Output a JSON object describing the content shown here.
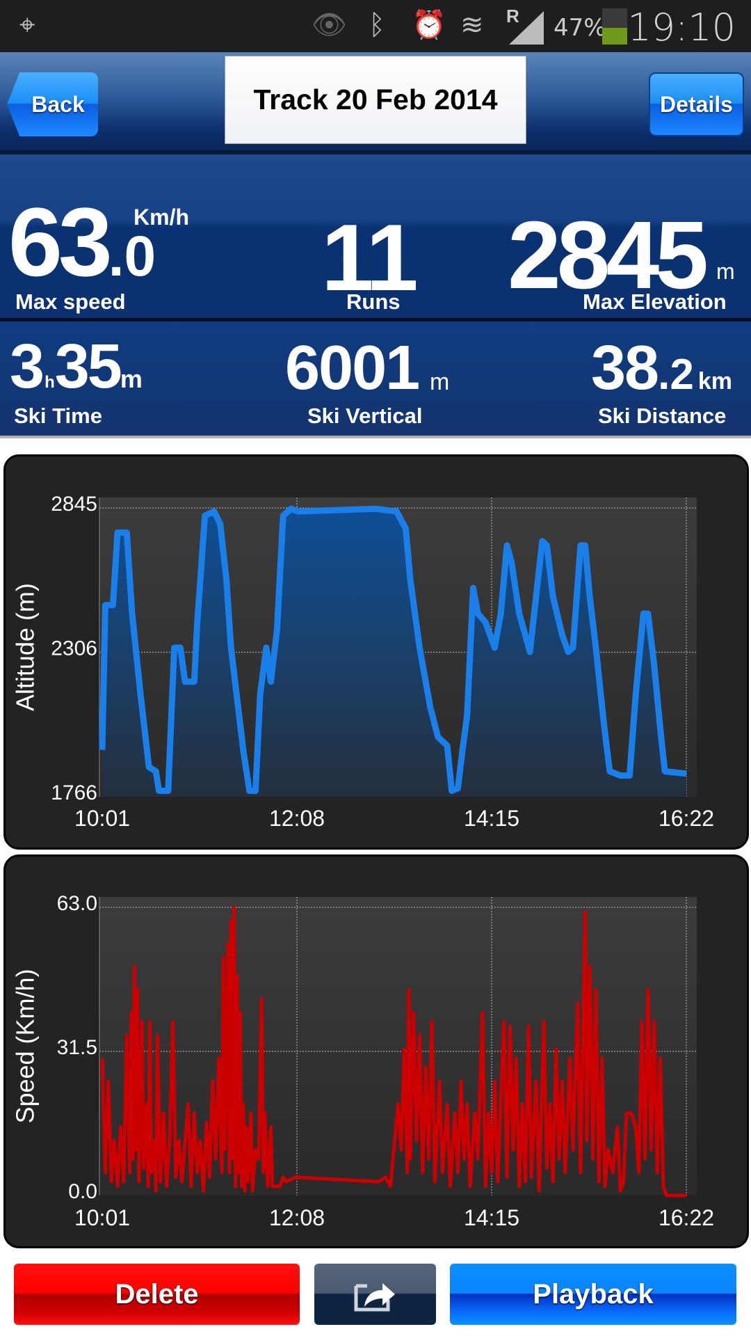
{
  "status_bar": {
    "battery_percent": "47%",
    "battery_level": 0.47,
    "time": "19:10",
    "roaming": "R",
    "icons": [
      "gps-icon",
      "eye-icon",
      "bluetooth-icon",
      "alarm-icon",
      "wifi-icon",
      "signal-icon",
      "battery-icon"
    ]
  },
  "header": {
    "back_label": "Back",
    "title": "Track 20 Feb 2014",
    "details_label": "Details"
  },
  "stats": {
    "max_speed": {
      "int": "63",
      "dec": ".0",
      "unit": "Km/h",
      "label": "Max speed"
    },
    "runs": {
      "value": "11",
      "label": "Runs"
    },
    "max_elevation": {
      "value": "2845",
      "unit": "m",
      "label": "Max Elevation"
    },
    "ski_time": {
      "hours": "3",
      "h_unit": "h",
      "minutes": "35",
      "m_unit": "m",
      "label": "Ski Time"
    },
    "ski_vertical": {
      "value": "6001",
      "unit": "m",
      "label": "Ski Vertical"
    },
    "ski_distance": {
      "int": "38",
      "dec": ".2",
      "unit": "km",
      "label": "Ski Distance"
    }
  },
  "colors": {
    "altitude": "#1a7fe8",
    "speed": "#cc0000",
    "delete": "#ff0000",
    "playback": "#0a84ff"
  },
  "chart_data": [
    {
      "type": "area",
      "ylabel": "Altitude (m)",
      "xlabel": "",
      "x_ticks": [
        "10:01",
        "12:08",
        "14:15",
        "16:22"
      ],
      "y_ticks": [
        "1766",
        "2306",
        "2845"
      ],
      "xlim": [
        "10:01",
        "16:22"
      ],
      "ylim": [
        1766,
        2845
      ],
      "grid": true,
      "x_unit_note_minutes_from": "10:01",
      "points": [
        [
          0,
          1941
        ],
        [
          2,
          2482
        ],
        [
          7,
          2482
        ],
        [
          10,
          2753
        ],
        [
          16,
          2753
        ],
        [
          19.5,
          2450
        ],
        [
          25,
          2148
        ],
        [
          30.5,
          1877
        ],
        [
          35,
          1861
        ],
        [
          37,
          1788
        ],
        [
          43,
          1788
        ],
        [
          47,
          2323
        ],
        [
          51,
          2323
        ],
        [
          54,
          2196
        ],
        [
          60,
          2196
        ],
        [
          62,
          2418
        ],
        [
          67,
          2816
        ],
        [
          73,
          2832
        ],
        [
          77,
          2784
        ],
        [
          81,
          2577
        ],
        [
          84,
          2323
        ],
        [
          92,
          1941
        ],
        [
          96,
          1788
        ],
        [
          100,
          1788
        ],
        [
          103,
          2148
        ],
        [
          107,
          2323
        ],
        [
          110,
          2196
        ],
        [
          114,
          2387
        ],
        [
          118,
          2816
        ],
        [
          123,
          2842
        ],
        [
          128,
          2832
        ],
        [
          178,
          2842
        ],
        [
          192,
          2832
        ],
        [
          198,
          2768
        ],
        [
          201,
          2577
        ],
        [
          207,
          2323
        ],
        [
          214,
          2100
        ],
        [
          219,
          1989
        ],
        [
          225,
          1957
        ],
        [
          228,
          1788
        ],
        [
          232,
          1798
        ],
        [
          235,
          1941
        ],
        [
          238,
          2068
        ],
        [
          242,
          2546
        ],
        [
          245,
          2450
        ],
        [
          250,
          2418
        ],
        [
          256,
          2323
        ],
        [
          260,
          2450
        ],
        [
          264,
          2705
        ],
        [
          267,
          2641
        ],
        [
          272,
          2450
        ],
        [
          279,
          2307
        ],
        [
          283,
          2514
        ],
        [
          287,
          2721
        ],
        [
          290,
          2705
        ],
        [
          294,
          2514
        ],
        [
          300,
          2371
        ],
        [
          304,
          2307
        ],
        [
          307,
          2323
        ],
        [
          312,
          2705
        ],
        [
          315,
          2705
        ],
        [
          318,
          2514
        ],
        [
          322,
          2323
        ],
        [
          327,
          2052
        ],
        [
          331,
          1861
        ],
        [
          338,
          1845
        ],
        [
          344,
          1845
        ],
        [
          348,
          2148
        ],
        [
          353,
          2450
        ],
        [
          356,
          2450
        ],
        [
          360,
          2259
        ],
        [
          364,
          2021
        ],
        [
          367,
          1861
        ],
        [
          381,
          1852
        ]
      ]
    },
    {
      "type": "line",
      "ylabel": "Speed (Km/h)",
      "xlabel": "",
      "x_ticks": [
        "10:01",
        "12:08",
        "14:15",
        "16:22"
      ],
      "y_ticks": [
        "0.0",
        "31.5",
        "63.0"
      ],
      "xlim": [
        "10:01",
        "16:22"
      ],
      "ylim": [
        0,
        63
      ],
      "grid": true,
      "points": [
        [
          0,
          30
        ],
        [
          2,
          5
        ],
        [
          4,
          25
        ],
        [
          6,
          3
        ],
        [
          8,
          12
        ],
        [
          10,
          2
        ],
        [
          12,
          15
        ],
        [
          14,
          3
        ],
        [
          16,
          35
        ],
        [
          18,
          5
        ],
        [
          19,
          40
        ],
        [
          20,
          8
        ],
        [
          21,
          50
        ],
        [
          22,
          10
        ],
        [
          23,
          45
        ],
        [
          24,
          3
        ],
        [
          26,
          38
        ],
        [
          27,
          6
        ],
        [
          29,
          20
        ],
        [
          30,
          2
        ],
        [
          31,
          38
        ],
        [
          32,
          5
        ],
        [
          34,
          12
        ],
        [
          35,
          1
        ],
        [
          36,
          35
        ],
        [
          38,
          3
        ],
        [
          40,
          18
        ],
        [
          42,
          2
        ],
        [
          44,
          12
        ],
        [
          46,
          38
        ],
        [
          48,
          4
        ],
        [
          50,
          12
        ],
        [
          52,
          3
        ],
        [
          56,
          20
        ],
        [
          58,
          2
        ],
        [
          60,
          18
        ],
        [
          62,
          5
        ],
        [
          64,
          12
        ],
        [
          66,
          1
        ],
        [
          68,
          16
        ],
        [
          70,
          4
        ],
        [
          72,
          25
        ],
        [
          74,
          8
        ],
        [
          76,
          30
        ],
        [
          78,
          5
        ],
        [
          79,
          52
        ],
        [
          80,
          10
        ],
        [
          82,
          55
        ],
        [
          83,
          5
        ],
        [
          84,
          60
        ],
        [
          85,
          8
        ],
        [
          86,
          63
        ],
        [
          87,
          2
        ],
        [
          88,
          48
        ],
        [
          89,
          5
        ],
        [
          90,
          40
        ],
        [
          91,
          2
        ],
        [
          92,
          20
        ],
        [
          93,
          1
        ],
        [
          94,
          15
        ],
        [
          95,
          3
        ],
        [
          97,
          18
        ],
        [
          98,
          1
        ],
        [
          100,
          10
        ],
        [
          102,
          8
        ],
        [
          104,
          43
        ],
        [
          105,
          5
        ],
        [
          106,
          18
        ],
        [
          108,
          2
        ],
        [
          110,
          15
        ],
        [
          111,
          2
        ],
        [
          116,
          2
        ],
        [
          118,
          4
        ],
        [
          120,
          3
        ],
        [
          126,
          4
        ],
        [
          180,
          3
        ],
        [
          185,
          4
        ],
        [
          188,
          2
        ],
        [
          193,
          20
        ],
        [
          195,
          10
        ],
        [
          197,
          32
        ],
        [
          199,
          5
        ],
        [
          200,
          45
        ],
        [
          201,
          8
        ],
        [
          203,
          40
        ],
        [
          205,
          12
        ],
        [
          207,
          35
        ],
        [
          209,
          5
        ],
        [
          211,
          28
        ],
        [
          213,
          8
        ],
        [
          215,
          38
        ],
        [
          217,
          3
        ],
        [
          220,
          25
        ],
        [
          222,
          5
        ],
        [
          225,
          20
        ],
        [
          227,
          2
        ],
        [
          230,
          18
        ],
        [
          232,
          5
        ],
        [
          234,
          25
        ],
        [
          236,
          8
        ],
        [
          238,
          20
        ],
        [
          240,
          2
        ],
        [
          243,
          18
        ],
        [
          245,
          8
        ],
        [
          248,
          40
        ],
        [
          250,
          2
        ],
        [
          252,
          18
        ],
        [
          254,
          5
        ],
        [
          256,
          25
        ],
        [
          258,
          3
        ],
        [
          262,
          38
        ],
        [
          264,
          4
        ],
        [
          266,
          37
        ],
        [
          268,
          10
        ],
        [
          270,
          30
        ],
        [
          272,
          2
        ],
        [
          274,
          20
        ],
        [
          276,
          3
        ],
        [
          278,
          37
        ],
        [
          280,
          4
        ],
        [
          283,
          25
        ],
        [
          285,
          1
        ],
        [
          288,
          38
        ],
        [
          290,
          6
        ],
        [
          292,
          20
        ],
        [
          294,
          3
        ],
        [
          296,
          32
        ],
        [
          298,
          8
        ],
        [
          300,
          25
        ],
        [
          302,
          5
        ],
        [
          305,
          30
        ],
        [
          307,
          10
        ],
        [
          310,
          42
        ],
        [
          312,
          5
        ],
        [
          315,
          62
        ],
        [
          316,
          12
        ],
        [
          318,
          50
        ],
        [
          320,
          8
        ],
        [
          322,
          45
        ],
        [
          324,
          3
        ],
        [
          326,
          30
        ],
        [
          328,
          2
        ],
        [
          330,
          10
        ],
        [
          333,
          5
        ],
        [
          336,
          15
        ],
        [
          338,
          1
        ],
        [
          340,
          3
        ],
        [
          342,
          18
        ],
        [
          345,
          18
        ],
        [
          348,
          15
        ],
        [
          350,
          5
        ],
        [
          352,
          38
        ],
        [
          354,
          8
        ],
        [
          356,
          45
        ],
        [
          358,
          10
        ],
        [
          360,
          38
        ],
        [
          362,
          5
        ],
        [
          364,
          30
        ],
        [
          366,
          2
        ],
        [
          368,
          0
        ],
        [
          381,
          0
        ]
      ]
    }
  ],
  "footer": {
    "delete_label": "Delete",
    "share_icon": "share-icon",
    "playback_label": "Playback"
  }
}
